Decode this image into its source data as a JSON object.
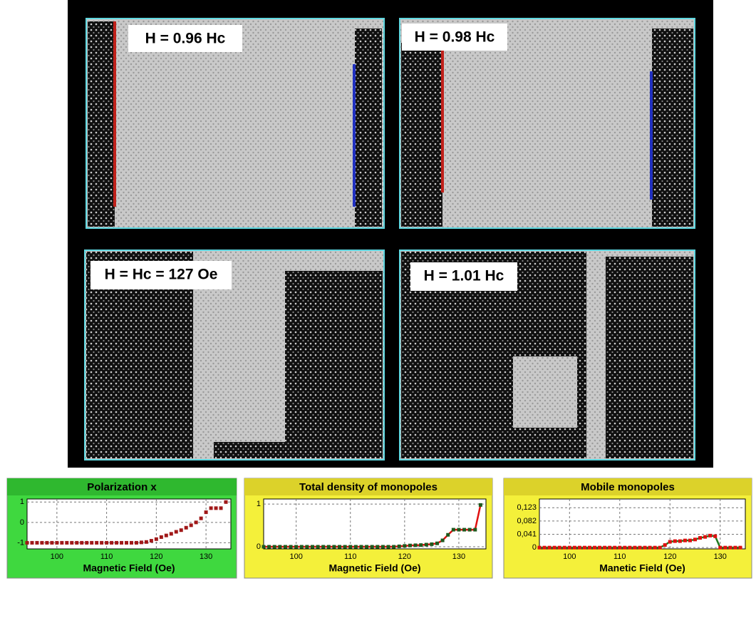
{
  "panels": [
    {
      "label": "H = 0.96 Hc"
    },
    {
      "label": "H = 0.98 Hc"
    },
    {
      "label": "H = Hc = 127 Oe"
    },
    {
      "label": "H = 1.01 Hc"
    }
  ],
  "chart_data": [
    {
      "type": "scatter",
      "title": "Polarization x",
      "x_label": "Magnetic Field (Oe)",
      "x": [
        94,
        95,
        96,
        97,
        98,
        99,
        100,
        101,
        102,
        103,
        104,
        105,
        106,
        107,
        108,
        109,
        110,
        111,
        112,
        113,
        114,
        115,
        116,
        117,
        118,
        119,
        120,
        121,
        122,
        123,
        124,
        125,
        126,
        127,
        128,
        129,
        130,
        131,
        132,
        133,
        134
      ],
      "values": [
        -1,
        -1,
        -1,
        -1,
        -1,
        -1,
        -1,
        -1,
        -1,
        -1,
        -1,
        -1,
        -1,
        -1,
        -1,
        -1,
        -1,
        -1,
        -1,
        -1,
        -1,
        -1,
        -1,
        -0.98,
        -0.96,
        -0.9,
        -0.82,
        -0.72,
        -0.64,
        -0.56,
        -0.46,
        -0.38,
        -0.26,
        -0.14,
        0,
        0.2,
        0.5,
        0.7,
        0.7,
        0.7,
        1
      ],
      "color": "#8b1a1a",
      "marker_color": "#a01818",
      "xlim": [
        94,
        135
      ],
      "xticks": [
        100,
        110,
        120,
        130
      ],
      "ylim": [
        -1.3,
        1.15
      ],
      "yticks": [
        -1,
        0,
        1
      ],
      "grid": true
    },
    {
      "type": "line",
      "title": "Total density of monopoles",
      "x_label": "Magnetic Field (Oe)",
      "x": [
        94,
        95,
        96,
        97,
        98,
        99,
        100,
        101,
        102,
        103,
        104,
        105,
        106,
        107,
        108,
        109,
        110,
        111,
        112,
        113,
        114,
        115,
        116,
        117,
        118,
        119,
        120,
        121,
        122,
        123,
        124,
        125,
        126,
        127,
        128,
        129,
        130,
        131,
        132,
        133,
        134
      ],
      "values": [
        0,
        0,
        0,
        0,
        0,
        0,
        0,
        0,
        0,
        0,
        0,
        0,
        0,
        0,
        0,
        0,
        0,
        0,
        0,
        0,
        0,
        0,
        0,
        0,
        0,
        0.01,
        0.02,
        0.03,
        0.035,
        0.04,
        0.05,
        0.06,
        0.08,
        0.15,
        0.28,
        0.4,
        0.4,
        0.4,
        0.4,
        0.4,
        0.98
      ],
      "color": "#e01010",
      "marker_color": "#1e5a1e",
      "xlim": [
        94,
        135
      ],
      "xticks": [
        100,
        110,
        120,
        130
      ],
      "ylim": [
        -0.05,
        1.12
      ],
      "yticks": [
        0,
        1
      ],
      "grid": true
    },
    {
      "type": "line",
      "title": "Mobile monopoles",
      "x_label": "Manetic Field (Oe)",
      "x": [
        94,
        95,
        96,
        97,
        98,
        99,
        100,
        101,
        102,
        103,
        104,
        105,
        106,
        107,
        108,
        109,
        110,
        111,
        112,
        113,
        114,
        115,
        116,
        117,
        118,
        119,
        120,
        121,
        122,
        123,
        124,
        125,
        126,
        127,
        128,
        129,
        130,
        131,
        132,
        133,
        134
      ],
      "values": [
        0,
        0,
        0,
        0,
        0,
        0,
        0,
        0,
        0,
        0,
        0,
        0,
        0,
        0,
        0,
        0,
        0,
        0,
        0,
        0,
        0,
        0,
        0,
        0,
        0,
        0.008,
        0.018,
        0.02,
        0.02,
        0.022,
        0.022,
        0.025,
        0.03,
        0.033,
        0.037,
        0.035,
        0,
        0,
        0,
        0,
        0
      ],
      "color": "#1e7a1e",
      "marker_color": "#e01010",
      "xlim": [
        94,
        135
      ],
      "xticks": [
        100,
        110,
        120,
        130
      ],
      "ylim": [
        -0.004,
        0.15
      ],
      "yticks": [
        0,
        {
          "value": 0.041,
          "label": "0,041"
        },
        {
          "value": 0.082,
          "label": "0,082"
        },
        {
          "value": 0.123,
          "label": "0,123"
        }
      ],
      "grid": true
    }
  ]
}
